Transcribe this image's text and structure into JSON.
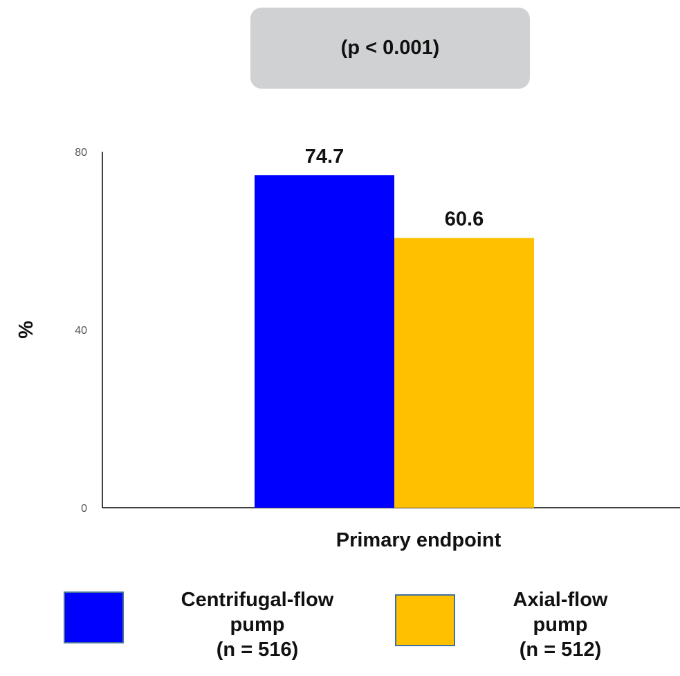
{
  "pvalue_label": "(p < 0.001)",
  "chart_data": {
    "type": "bar",
    "categories": [
      "Primary endpoint"
    ],
    "series": [
      {
        "name": "Centrifugal-flow pump (n = 516)",
        "values": [
          74.7
        ],
        "color": "#0000ff"
      },
      {
        "name": "Axial-flow pump (n = 512)",
        "values": [
          60.6
        ],
        "color": "#ffc000"
      }
    ],
    "data_labels": [
      "74.7",
      "60.6"
    ],
    "ylabel": "%",
    "xlabel": "Primary endpoint",
    "ylim": [
      0,
      80
    ],
    "yticks": [
      0,
      40,
      80
    ],
    "grid": false,
    "legend_position": "bottom"
  },
  "legend": [
    {
      "label": "Centrifugal-flow\npump\n(n = 516)",
      "color": "#0000ff"
    },
    {
      "label": "Axial-flow\npump\n(n = 512)",
      "color": "#ffc000"
    }
  ]
}
